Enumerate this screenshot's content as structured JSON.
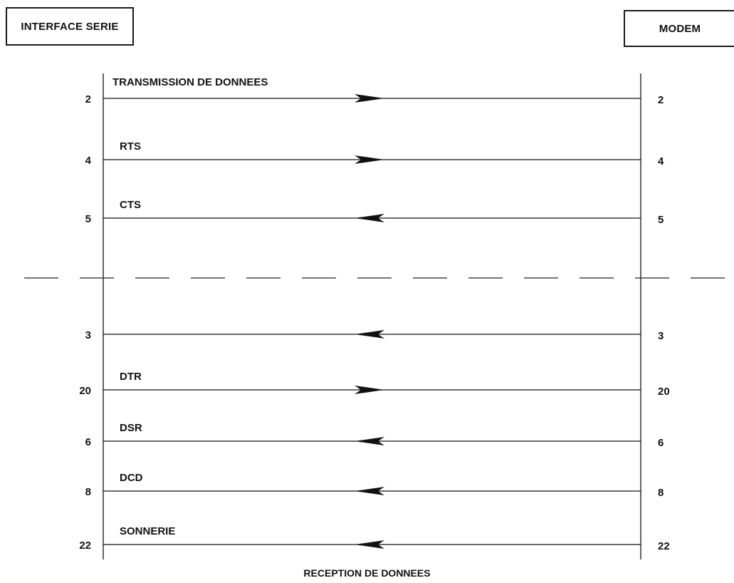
{
  "boxes": {
    "left": "INTERFACE SERIE",
    "right": "MODEM"
  },
  "top_label": "TRANSMISSION DE DONNEES",
  "bottom_label": "RECEPTION DE DONNEES",
  "signals": [
    {
      "pin_left": "2",
      "pin_right": "2",
      "name": "",
      "direction": "to-modem"
    },
    {
      "pin_left": "4",
      "pin_right": "4",
      "name": "RTS",
      "direction": "to-modem"
    },
    {
      "pin_left": "5",
      "pin_right": "5",
      "name": "CTS",
      "direction": "to-interface"
    },
    {
      "pin_left": "3",
      "pin_right": "3",
      "name": "",
      "direction": "to-interface"
    },
    {
      "pin_left": "20",
      "pin_right": "20",
      "name": "DTR",
      "direction": "to-modem"
    },
    {
      "pin_left": "6",
      "pin_right": "6",
      "name": "DSR",
      "direction": "to-interface"
    },
    {
      "pin_left": "8",
      "pin_right": "8",
      "name": "DCD",
      "direction": "to-interface"
    },
    {
      "pin_left": "22",
      "pin_right": "22",
      "name": "SONNERIE",
      "direction": "to-interface"
    }
  ],
  "colors": {
    "ink": "#111111",
    "background": "#ffffff"
  }
}
